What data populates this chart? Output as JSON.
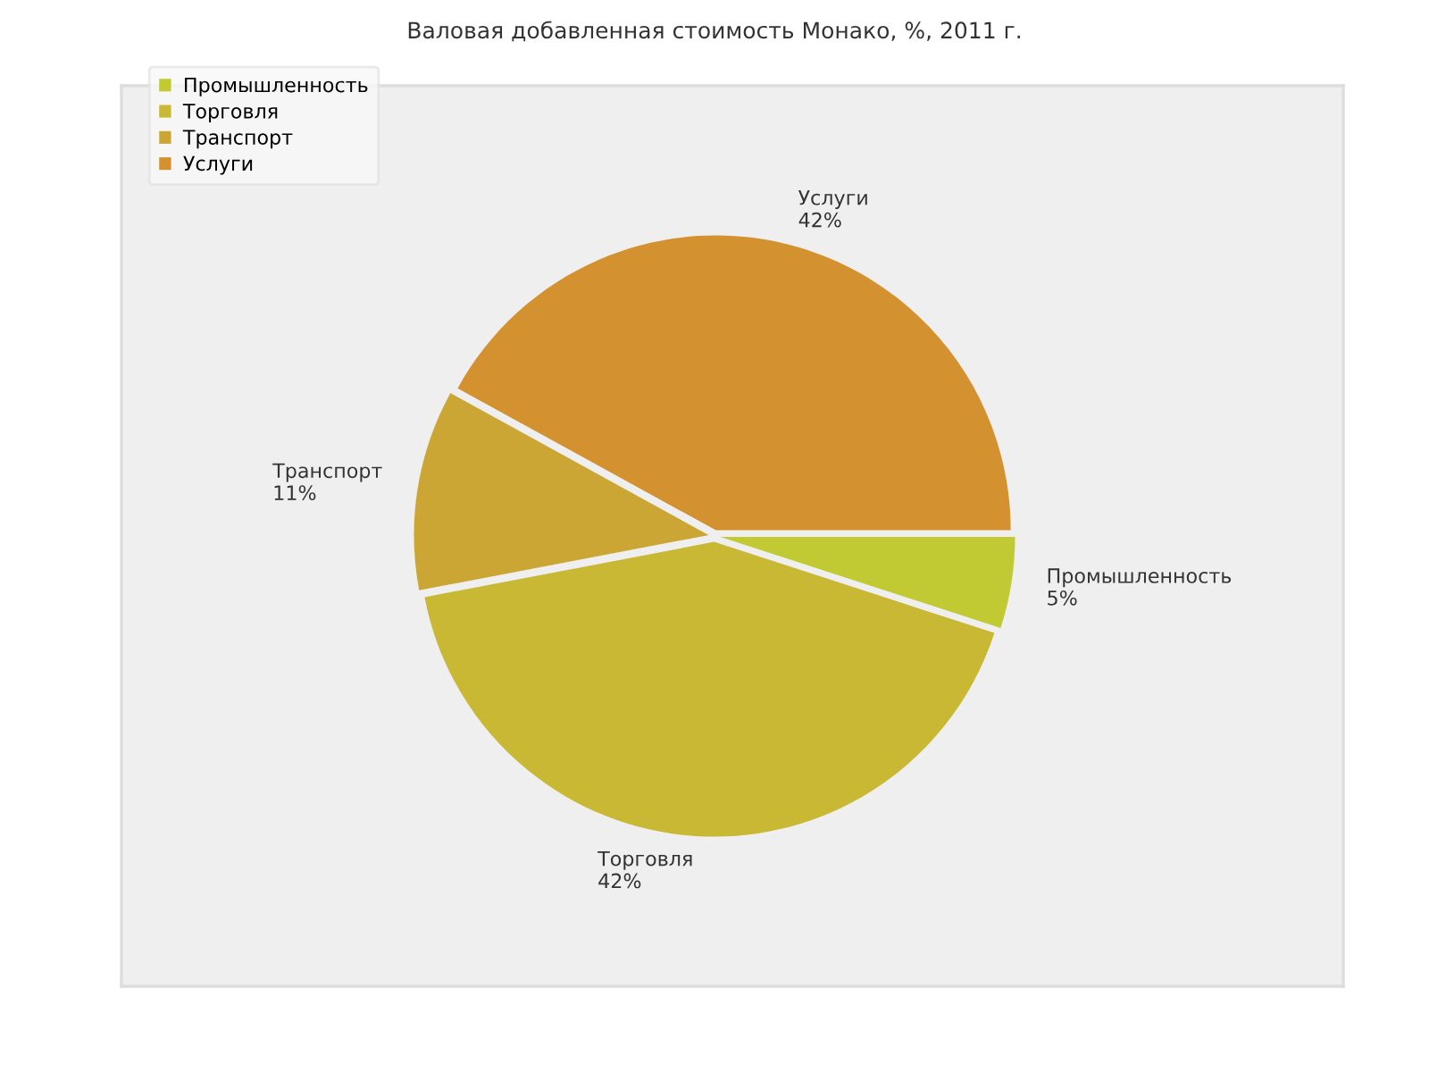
{
  "chart_data": {
    "type": "pie",
    "title": "Валовая добавленная стоимость Монако, %, 2011 г.",
    "categories": [
      "Промышленность",
      "Торговля",
      "Транспорт",
      "Услуги"
    ],
    "values": [
      5,
      42,
      11,
      42
    ],
    "value_labels": [
      "5%",
      "42%",
      "11%",
      "42%"
    ],
    "colors": [
      "#c2ca33",
      "#c8b834",
      "#cca634",
      "#d3912f"
    ],
    "legend": "top left"
  }
}
